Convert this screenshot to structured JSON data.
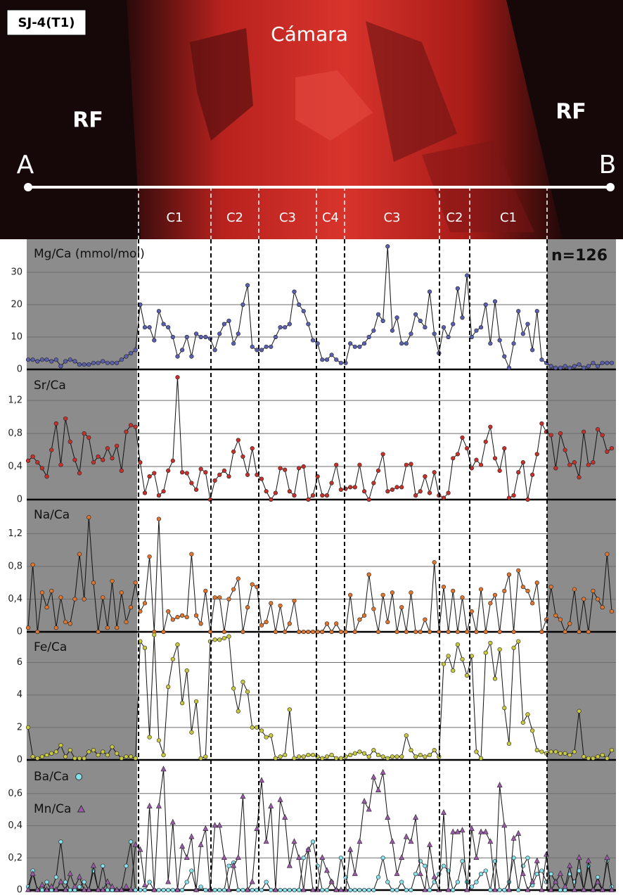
{
  "image": {
    "sample": "SJ-4(T1)",
    "chamber": "Cámara",
    "rf_left": "RF",
    "rf_right": "RF",
    "point_a": "A",
    "point_b": "B",
    "zones": [
      "C1",
      "C2",
      "C3",
      "C4",
      "C3",
      "C2",
      "C1"
    ],
    "n": "n=126"
  },
  "chart_data": [
    {
      "type": "line",
      "title": "Mg/Ca (mmol/mol)",
      "ylim": [
        0,
        40
      ],
      "yticks": [
        0,
        10,
        20,
        30
      ],
      "grid": true,
      "series": [
        {
          "name": "Mg/Ca",
          "color": "#5a5fb0",
          "marker": "circle",
          "values": [
            3,
            3,
            2.5,
            3,
            3,
            2.5,
            3,
            1,
            2.5,
            3,
            2.5,
            1.5,
            1.5,
            1.5,
            2,
            2,
            2.5,
            2,
            2,
            2,
            3,
            4,
            5,
            6,
            20,
            13,
            13,
            9,
            18,
            14,
            13,
            10,
            4,
            6,
            10,
            4,
            11,
            10,
            10,
            9.5,
            6,
            11,
            14,
            15,
            8,
            11,
            20,
            26,
            7,
            6,
            6,
            7,
            7,
            10,
            13,
            13,
            14,
            24,
            20,
            18,
            14,
            9,
            8,
            3,
            3,
            4.5,
            3,
            2,
            2,
            8,
            7,
            7,
            8,
            10,
            12,
            17,
            15,
            38,
            12,
            16,
            8,
            8,
            11,
            17,
            15,
            13,
            24,
            11,
            5,
            13,
            10,
            14,
            25,
            16,
            29,
            10,
            12,
            13,
            20,
            8,
            21,
            9,
            4,
            0.5,
            8,
            18,
            11,
            14,
            6,
            18,
            3,
            2,
            1,
            0.5,
            0.5,
            1,
            0.5,
            1,
            1.5,
            0.5,
            1,
            2,
            1,
            2,
            2,
            2
          ]
        }
      ]
    },
    {
      "type": "line",
      "title": "Sr/Ca",
      "ylim": [
        0,
        1.55
      ],
      "yticks": [
        0,
        {
          "value": 0.4,
          "label": "0,4"
        },
        {
          "value": 0.8,
          "label": "0,8"
        },
        {
          "value": 1.2,
          "label": "1,2"
        }
      ],
      "grid": true,
      "series": [
        {
          "name": "Sr/Ca",
          "color": "#c8302a",
          "marker": "circle",
          "values": [
            0.47,
            0.52,
            0.45,
            0.38,
            0.28,
            0.6,
            0.92,
            0.42,
            0.98,
            0.7,
            0.48,
            0.32,
            0.8,
            0.75,
            0.45,
            0.52,
            0.48,
            0.62,
            0.5,
            0.65,
            0.35,
            0.82,
            0.9,
            0.88,
            0.45,
            0.08,
            0.28,
            0.32,
            0.05,
            0.1,
            0.35,
            0.47,
            1.48,
            0.33,
            0.32,
            0.2,
            0.12,
            0.37,
            0.33,
            0.0,
            0.23,
            0.3,
            0.35,
            0.28,
            0.58,
            0.72,
            0.52,
            0.3,
            0.62,
            0.3,
            0.25,
            0.1,
            0.0,
            0.08,
            0.38,
            0.36,
            0.1,
            0.05,
            0.38,
            0.4,
            0.0,
            0.05,
            0.28,
            0.05,
            0.05,
            0.2,
            0.42,
            0.12,
            0.13,
            0.15,
            0.15,
            0.42,
            0.1,
            0.0,
            0.2,
            0.35,
            0.55,
            0.1,
            0.12,
            0.15,
            0.15,
            0.42,
            0.43,
            0.05,
            0.1,
            0.28,
            0.08,
            0.33,
            0.05,
            0.02,
            0.08,
            0.5,
            0.55,
            0.75,
            0.62,
            0.38,
            0.48,
            0.42,
            0.7,
            0.88,
            0.5,
            0.35,
            0.62,
            0.02,
            0.05,
            0.33,
            0.45,
            0.0,
            0.3,
            0.55,
            0.92,
            0.82,
            0.78,
            0.38,
            0.8,
            0.6,
            0.42,
            0.45,
            0.27,
            0.82,
            0.42,
            0.45,
            0.85,
            0.78,
            0.58,
            0.62
          ]
        }
      ]
    },
    {
      "type": "line",
      "title": "Na/Ca",
      "ylim": [
        0,
        1.6
      ],
      "yticks": [
        0,
        {
          "value": 0.4,
          "label": "0,4"
        },
        {
          "value": 0.8,
          "label": "0,8"
        },
        {
          "value": 1.2,
          "label": "1,2"
        }
      ],
      "grid": true,
      "series": [
        {
          "name": "Na/Ca",
          "color": "#e0762e",
          "marker": "circle",
          "values": [
            0.05,
            0.82,
            0.0,
            0.48,
            0.3,
            0.5,
            0.05,
            0.42,
            0.12,
            0.1,
            0.4,
            0.95,
            0.4,
            1.4,
            0.6,
            0.0,
            0.42,
            0.05,
            0.62,
            0.05,
            0.48,
            0.12,
            0.3,
            0.6,
            0.25,
            0.35,
            0.92,
            0.0,
            1.38,
            0.0,
            0.25,
            0.15,
            0.18,
            0.2,
            0.18,
            0.95,
            0.2,
            0.1,
            0.5,
            0.0,
            0.42,
            0.42,
            0.0,
            0.4,
            0.52,
            0.65,
            0.0,
            0.3,
            0.58,
            0.55,
            0.08,
            0.12,
            0.35,
            0.0,
            0.32,
            0.0,
            0.1,
            0.38,
            0.0,
            0.0,
            0.0,
            0.0,
            0.0,
            0.0,
            0.1,
            0.0,
            0.1,
            0.0,
            0.0,
            0.45,
            0.0,
            0.15,
            0.2,
            0.7,
            0.28,
            0.0,
            0.45,
            0.12,
            0.48,
            0.0,
            0.3,
            0.0,
            0.48,
            0.0,
            0.0,
            0.15,
            0.0,
            0.85,
            0.0,
            0.55,
            0.0,
            0.5,
            0.0,
            0.42,
            0.0,
            0.25,
            0.0,
            0.52,
            0.0,
            0.35,
            0.45,
            0.0,
            0.5,
            0.7,
            0.0,
            0.75,
            0.55,
            0.5,
            0.35,
            0.6,
            0.0,
            0.15,
            0.55,
            0.2,
            0.15,
            0.0,
            0.1,
            0.52,
            0.0,
            0.4,
            0.0,
            0.5,
            0.4,
            0.3,
            0.95,
            0.25
          ]
        }
      ]
    },
    {
      "type": "line",
      "title": "Fe/Ca",
      "ylim": [
        0,
        7.8
      ],
      "yticks": [
        0,
        2,
        4,
        6
      ],
      "grid": true,
      "series": [
        {
          "name": "Fe/Ca",
          "color": "#c9c93e",
          "marker": "circle",
          "values": [
            2,
            0.2,
            0.1,
            0.2,
            0.3,
            0.4,
            0.5,
            0.9,
            0.2,
            0.6,
            0.1,
            0.1,
            0.1,
            0.5,
            0.6,
            0.3,
            0.5,
            0.3,
            0.8,
            0.4,
            0.1,
            0.2,
            0.2,
            0.1,
            7.3,
            6.9,
            1.4,
            7.7,
            1.2,
            0.3,
            4.5,
            6.2,
            7.1,
            3.5,
            5.5,
            1.7,
            3.6,
            0.1,
            0.2,
            7.3,
            7.4,
            7.4,
            7.5,
            7.6,
            4.4,
            3.0,
            4.8,
            4.2,
            2.0,
            2.0,
            1.8,
            1.4,
            1.5,
            0.1,
            0.2,
            0.3,
            3.1,
            0.1,
            0.2,
            0.2,
            0.3,
            0.3,
            0.2,
            0.1,
            0.2,
            0.3,
            0.1,
            0.1,
            0.2,
            0.3,
            0.4,
            0.5,
            0.4,
            0.2,
            0.6,
            0.3,
            0.2,
            0.1,
            0.2,
            0.2,
            0.2,
            1.5,
            0.6,
            0.2,
            0.3,
            0.2,
            0.3,
            0.6,
            0.2,
            5.9,
            6.4,
            5.5,
            7.1,
            6.2,
            5.2,
            6.4,
            0.5,
            0.1,
            6.6,
            7.2,
            5.0,
            6.8,
            3.2,
            1.0,
            6.9,
            7.3,
            2.3,
            2.8,
            1.8,
            0.6,
            0.5,
            0.4,
            0.5,
            0.5,
            0.4,
            0.4,
            0.3,
            0.5,
            3.0,
            0.2,
            0.1,
            0.1,
            0.2,
            0.3,
            0.1,
            0.6
          ]
        }
      ]
    },
    {
      "type": "line",
      "ylim": [
        0,
        0.8
      ],
      "yticks": [
        0,
        {
          "value": 0.2,
          "label": "0,2"
        },
        {
          "value": 0.4,
          "label": "0,4"
        },
        {
          "value": 0.6,
          "label": "0,6"
        }
      ],
      "grid": true,
      "series": [
        {
          "name": "Ba/Ca",
          "color": "#86e2ec",
          "marker": "circle",
          "values": [
            0.02,
            0.12,
            0.0,
            0.0,
            0.05,
            0.0,
            0.08,
            0.3,
            0.05,
            0.0,
            0.0,
            0.02,
            0.05,
            0.0,
            0.12,
            0.0,
            0.15,
            0.0,
            0.0,
            0.0,
            0.0,
            0.15,
            0.3,
            0.0,
            0.0,
            0.0,
            0.05,
            0.0,
            0.0,
            0.0,
            0.0,
            0.0,
            0.0,
            0.0,
            0.05,
            0.12,
            0.0,
            0.02,
            0.0,
            0.0,
            0.0,
            0.0,
            0.0,
            0.15,
            0.17,
            0.0,
            0.0,
            0.0,
            0.0,
            0.0,
            0.0,
            0.05,
            0.0,
            0.0,
            0.0,
            0.0,
            0.0,
            0.0,
            0.0,
            0.2,
            0.25,
            0.3,
            0.15,
            0.0,
            0.0,
            0.05,
            0.0,
            0.2,
            0.08,
            0.0,
            0.0,
            0.0,
            0.0,
            0.0,
            0.0,
            0.08,
            0.2,
            0.05,
            0.0,
            0.0,
            0.05,
            0.0,
            0.0,
            0.1,
            0.18,
            0.15,
            0.0,
            0.05,
            0.1,
            0.15,
            0.12,
            0.0,
            0.05,
            0.18,
            0.05,
            0.02,
            0.05,
            0.1,
            0.12,
            0.0,
            0.18,
            0.0,
            0.0,
            0.05,
            0.2,
            0.0,
            0.15,
            0.2,
            0.03,
            0.1,
            0.12,
            0.05,
            0.1,
            0.05,
            0.0,
            0.0,
            0.1,
            0.05,
            0.12,
            0.0,
            0.15,
            0.0,
            0.08,
            0.0,
            0.18,
            0.02
          ]
        },
        {
          "name": "Mn/Ca",
          "color": "#9a5aa8",
          "marker": "triangle",
          "values": [
            0.0,
            0.1,
            0.0,
            0.03,
            0.0,
            0.02,
            0.0,
            0.05,
            0.0,
            0.1,
            0.02,
            0.08,
            0.0,
            0.0,
            0.15,
            0.0,
            0.0,
            0.05,
            0.02,
            0.0,
            0.0,
            0.02,
            0.0,
            0.28,
            0.25,
            0.03,
            0.52,
            0.0,
            0.52,
            0.75,
            0.05,
            0.42,
            0.0,
            0.27,
            0.2,
            0.33,
            0.0,
            0.28,
            0.38,
            0.0,
            0.4,
            0.4,
            0.2,
            0.0,
            0.15,
            0.2,
            0.58,
            0.0,
            0.05,
            0.38,
            0.68,
            0.3,
            0.52,
            0.0,
            0.56,
            0.45,
            0.15,
            0.3,
            0.2,
            0.0,
            0.25,
            0.0,
            0.0,
            0.2,
            0.12,
            0.05,
            0.0,
            0.0,
            0.0,
            0.25,
            0.1,
            0.3,
            0.55,
            0.5,
            0.7,
            0.62,
            0.73,
            0.45,
            0.3,
            0.1,
            0.2,
            0.33,
            0.3,
            0.45,
            0.1,
            0.0,
            0.28,
            0.08,
            0.0,
            0.48,
            0.0,
            0.36,
            0.36,
            0.37,
            0.0,
            0.38,
            0.2,
            0.36,
            0.36,
            0.3,
            0.0,
            0.65,
            0.4,
            0.0,
            0.32,
            0.35,
            0.1,
            0.0,
            0.05,
            0.18,
            0.0,
            0.22,
            0.0,
            0.05,
            0.1,
            0.02,
            0.15,
            0.0,
            0.2,
            0.0,
            0.18,
            0.0,
            0.05,
            0.0,
            0.2,
            0.0
          ]
        }
      ]
    }
  ]
}
